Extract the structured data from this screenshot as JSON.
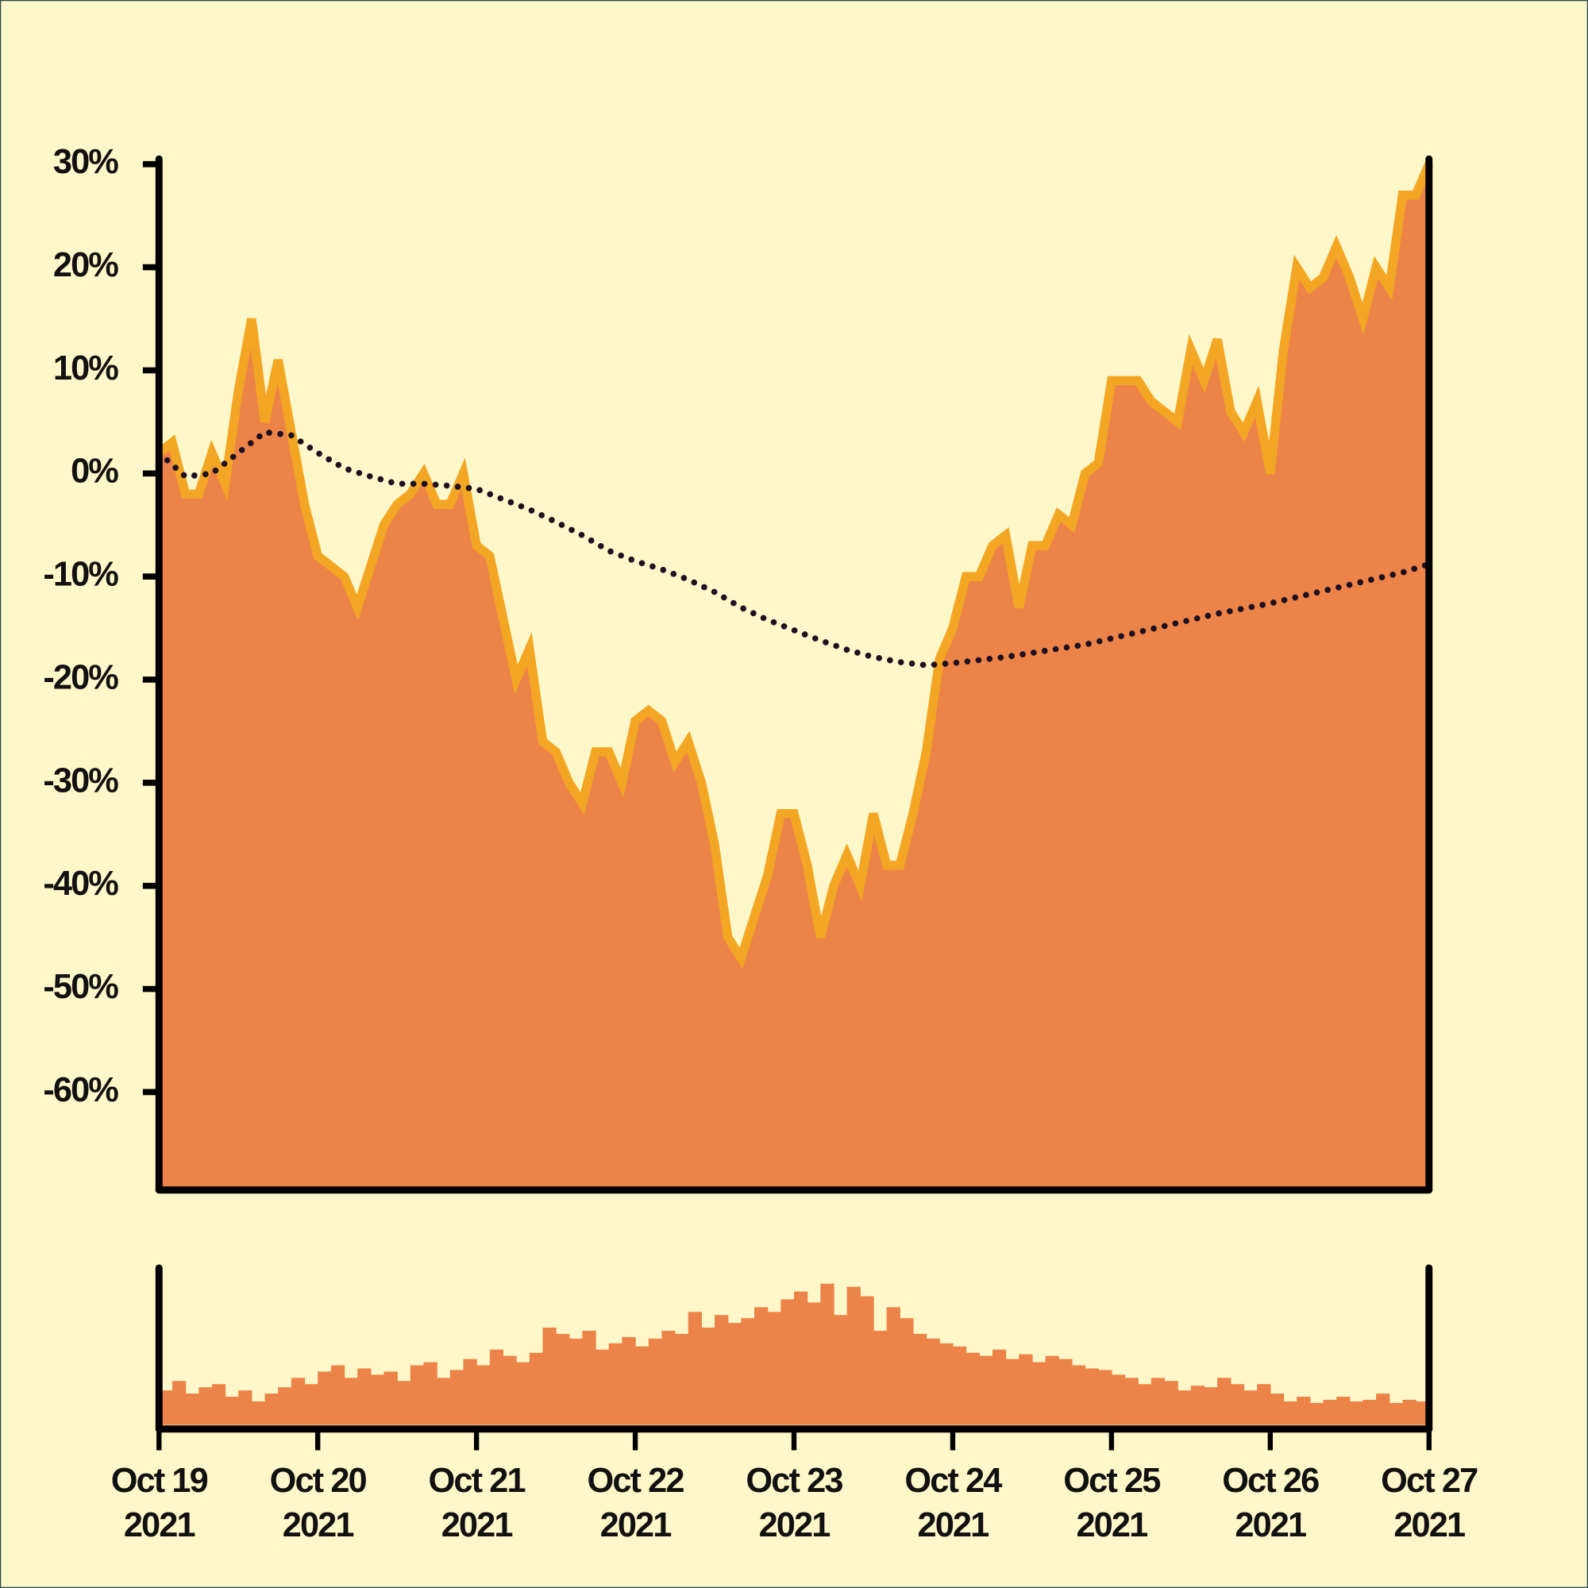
{
  "chart_data": [
    {
      "type": "area",
      "xlim": [
        0,
        8
      ],
      "ylim": [
        -69.5,
        30.5
      ],
      "yticks": [
        {
          "value": 30,
          "label": "30%"
        },
        {
          "value": 20,
          "label": "20%"
        },
        {
          "value": 10,
          "label": "10%"
        },
        {
          "value": 0,
          "label": "0%"
        },
        {
          "value": -10,
          "label": "-10%"
        },
        {
          "value": -20,
          "label": "-20%"
        },
        {
          "value": -30,
          "label": "-30%"
        },
        {
          "value": -40,
          "label": "-40%"
        },
        {
          "value": -50,
          "label": "-50%"
        },
        {
          "value": -60,
          "label": "-60%"
        }
      ],
      "series": [
        {
          "type": "area",
          "color": "#ec8348",
          "line_color": "#f2a623",
          "x": [
            0,
            0.0833,
            0.1667,
            0.25,
            0.3333,
            0.4167,
            0.5,
            0.5833,
            0.6667,
            0.75,
            0.8333,
            0.9167,
            1,
            1.0833,
            1.1667,
            1.25,
            1.3333,
            1.4167,
            1.5,
            1.5833,
            1.6667,
            1.75,
            1.8333,
            1.9167,
            2,
            2.0833,
            2.1667,
            2.25,
            2.3333,
            2.4167,
            2.5,
            2.5833,
            2.6667,
            2.75,
            2.8333,
            2.9167,
            3,
            3.0833,
            3.1667,
            3.25,
            3.3333,
            3.4167,
            3.5,
            3.5833,
            3.6667,
            3.75,
            3.8333,
            3.9167,
            4,
            4.0833,
            4.1667,
            4.25,
            4.3333,
            4.4167,
            4.5,
            4.5833,
            4.6667,
            4.75,
            4.8333,
            4.9167,
            5,
            5.0833,
            5.1667,
            5.25,
            5.3333,
            5.4167,
            5.5,
            5.5833,
            5.6667,
            5.75,
            5.8333,
            5.9167,
            6,
            6.0833,
            6.1667,
            6.25,
            6.3333,
            6.4167,
            6.5,
            6.5833,
            6.6667,
            6.75,
            6.8333,
            6.9167,
            7,
            7.0833,
            7.1667,
            7.25,
            7.3333,
            7.4167,
            7.5,
            7.5833,
            7.6667,
            7.75,
            7.8333,
            7.9167,
            8
          ],
          "values": [
            2,
            3,
            -2,
            -2,
            2,
            -1,
            8,
            15,
            5,
            11,
            4,
            -3,
            -8,
            -9,
            -10,
            -13,
            -9,
            -5,
            -3,
            -2,
            0,
            -3,
            -3,
            0,
            -7,
            -8,
            -14,
            -20,
            -17,
            -26,
            -27,
            -30,
            -32,
            -27,
            -27,
            -30,
            -24,
            -23,
            -24,
            -28,
            -26,
            -30,
            -36,
            -45,
            -47,
            -43,
            -39,
            -33,
            -33,
            -38,
            -45,
            -40,
            -37,
            -40,
            -33,
            -38,
            -38,
            -33,
            -27,
            -18,
            -15,
            -10,
            -10,
            -7,
            -6,
            -13,
            -7,
            -7,
            -4,
            -5,
            0,
            1,
            9,
            9,
            9,
            7,
            6,
            5,
            12,
            9,
            13,
            6,
            4,
            7,
            0,
            12,
            20,
            18,
            19,
            22,
            19,
            15,
            20,
            18,
            27,
            27,
            30
          ]
        },
        {
          "type": "line",
          "color": "#1e1020",
          "style": "dotted",
          "x": [
            0,
            0.1667,
            0.3333,
            0.5,
            0.6667,
            0.8333,
            1,
            1.1667,
            1.3333,
            1.5,
            1.6667,
            1.8333,
            2,
            2.1667,
            2.3333,
            2.5,
            2.6667,
            2.8333,
            3,
            3.1667,
            3.3333,
            3.5,
            3.6667,
            3.8333,
            4,
            4.1667,
            4.3333,
            4.5,
            4.6667,
            4.8333,
            5,
            5.1667,
            5.3333,
            5.5,
            5.6667,
            5.8333,
            6,
            6.1667,
            6.3333,
            6.5,
            6.6667,
            6.8333,
            7,
            7.1667,
            7.3333,
            7.5,
            7.6667,
            7.8333,
            8
          ],
          "values": [
            2,
            -0.3,
            0,
            2,
            4,
            3.7,
            2,
            0.5,
            -0.3,
            -1,
            -1,
            -1.2,
            -1.5,
            -2.5,
            -3.5,
            -4.7,
            -6,
            -7.5,
            -8.5,
            -9.3,
            -10.3,
            -11.5,
            -13,
            -14.2,
            -15.2,
            -16.2,
            -17.1,
            -17.8,
            -18.3,
            -18.6,
            -18.4,
            -18.1,
            -17.8,
            -17.4,
            -17,
            -16.6,
            -16,
            -15.4,
            -14.8,
            -14.2,
            -13.6,
            -13.1,
            -12.6,
            -12,
            -11.4,
            -10.8,
            -10.2,
            -9.6,
            -8.8
          ]
        }
      ]
    },
    {
      "type": "bar",
      "color": "#ec8348",
      "xlim": [
        0,
        8
      ],
      "ylim": [
        0,
        100
      ],
      "xticks": [
        {
          "value": 0,
          "label": "Oct 19\n2021"
        },
        {
          "value": 1,
          "label": "Oct 20\n2021"
        },
        {
          "value": 2,
          "label": "Oct 21\n2021"
        },
        {
          "value": 3,
          "label": "Oct 22\n2021"
        },
        {
          "value": 4,
          "label": "Oct 23\n2021"
        },
        {
          "value": 5,
          "label": "Oct 24\n2021"
        },
        {
          "value": 6,
          "label": "Oct 25\n2021"
        },
        {
          "value": 7,
          "label": "Oct 26\n2021"
        },
        {
          "value": 8,
          "label": "Oct 27\n2021"
        }
      ],
      "x": [
        0,
        0.0833,
        0.1667,
        0.25,
        0.3333,
        0.4167,
        0.5,
        0.5833,
        0.6667,
        0.75,
        0.8333,
        0.9167,
        1,
        1.0833,
        1.1667,
        1.25,
        1.3333,
        1.4167,
        1.5,
        1.5833,
        1.6667,
        1.75,
        1.8333,
        1.9167,
        2,
        2.0833,
        2.1667,
        2.25,
        2.3333,
        2.4167,
        2.5,
        2.5833,
        2.6667,
        2.75,
        2.8333,
        2.9167,
        3,
        3.0833,
        3.1667,
        3.25,
        3.3333,
        3.4167,
        3.5,
        3.5833,
        3.6667,
        3.75,
        3.8333,
        3.9167,
        4,
        4.0833,
        4.1667,
        4.25,
        4.3333,
        4.4167,
        4.5,
        4.5833,
        4.6667,
        4.75,
        4.8333,
        4.9167,
        5,
        5.0833,
        5.1667,
        5.25,
        5.3333,
        5.4167,
        5.5,
        5.5833,
        5.6667,
        5.75,
        5.8333,
        5.9167,
        6,
        6.0833,
        6.1667,
        6.25,
        6.3333,
        6.4167,
        6.5,
        6.5833,
        6.6667,
        6.75,
        6.8333,
        6.9167,
        7,
        7.0833,
        7.1667,
        7.25,
        7.3333,
        7.4167,
        7.5,
        7.5833,
        7.6667,
        7.75,
        7.8333,
        7.9167
      ],
      "values": [
        22,
        28,
        20,
        24,
        26,
        18,
        22,
        15,
        20,
        24,
        30,
        26,
        34,
        38,
        30,
        36,
        32,
        34,
        28,
        38,
        40,
        30,
        35,
        42,
        38,
        48,
        44,
        40,
        46,
        62,
        58,
        55,
        60,
        48,
        52,
        56,
        50,
        55,
        60,
        58,
        72,
        62,
        70,
        65,
        68,
        75,
        72,
        80,
        85,
        78,
        90,
        70,
        88,
        82,
        60,
        75,
        68,
        58,
        55,
        52,
        50,
        46,
        44,
        48,
        42,
        45,
        40,
        44,
        42,
        38,
        36,
        35,
        32,
        30,
        26,
        30,
        28,
        22,
        25,
        24,
        30,
        26,
        22,
        26,
        20,
        15,
        18,
        14,
        16,
        18,
        15,
        16,
        20,
        14,
        16,
        15
      ]
    }
  ]
}
